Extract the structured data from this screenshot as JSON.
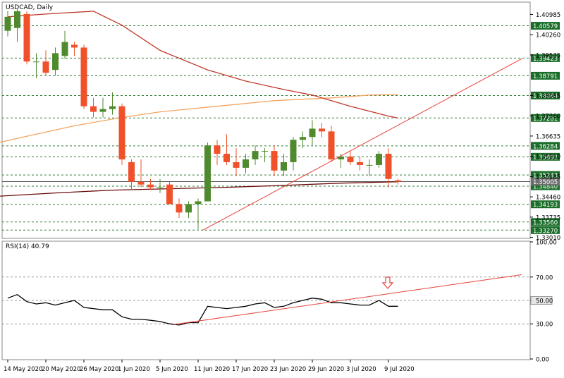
{
  "chart_data": {
    "type": "candlestick",
    "main": {
      "title": "USDCAD, Daily",
      "ylim": [
        1.33,
        1.414
      ],
      "price_ticks": [
        "1.40985",
        "1.40260",
        "1.39535",
        "1.38085",
        "1.37360",
        "1.36635",
        "1.35910",
        "1.35185",
        "1.34460",
        "1.33735",
        "1.33010"
      ],
      "levels": [
        {
          "value": 1.40579,
          "label": "1.40579"
        },
        {
          "value": 1.39423,
          "label": "1.39423"
        },
        {
          "value": 1.38791,
          "label": "1.38791"
        },
        {
          "value": 1.38084,
          "label": "1.38084"
        },
        {
          "value": 1.37281,
          "label": "1.37281"
        },
        {
          "value": 1.36284,
          "label": "1.36284"
        },
        {
          "value": 1.35892,
          "label": "1.35892"
        },
        {
          "value": 1.35243,
          "label": "1.35243"
        },
        {
          "value": 1.3484,
          "label": "1.34840"
        },
        {
          "value": 1.34193,
          "label": "1.34193"
        },
        {
          "value": 1.3356,
          "label": "1.33560"
        },
        {
          "value": 1.3327,
          "label": "1.33270"
        }
      ],
      "current_price": {
        "value": 1.35005,
        "label": "1.35005"
      },
      "candles": [
        {
          "o": 1.404,
          "h": 1.411,
          "l": 1.402,
          "c": 1.409
        },
        {
          "o": 1.405,
          "h": 1.412,
          "l": 1.4,
          "c": 1.411
        },
        {
          "o": 1.41,
          "h": 1.411,
          "l": 1.392,
          "c": 1.393
        },
        {
          "o": 1.393,
          "h": 1.396,
          "l": 1.387,
          "c": 1.393
        },
        {
          "o": 1.393,
          "h": 1.397,
          "l": 1.388,
          "c": 1.389
        },
        {
          "o": 1.39,
          "h": 1.398,
          "l": 1.388,
          "c": 1.396
        },
        {
          "o": 1.395,
          "h": 1.404,
          "l": 1.394,
          "c": 1.4
        },
        {
          "o": 1.399,
          "h": 1.4,
          "l": 1.395,
          "c": 1.398
        },
        {
          "o": 1.398,
          "h": 1.399,
          "l": 1.376,
          "c": 1.377
        },
        {
          "o": 1.377,
          "h": 1.38,
          "l": 1.373,
          "c": 1.375
        },
        {
          "o": 1.375,
          "h": 1.38,
          "l": 1.373,
          "c": 1.376
        },
        {
          "o": 1.376,
          "h": 1.382,
          "l": 1.374,
          "c": 1.377
        },
        {
          "o": 1.377,
          "h": 1.378,
          "l": 1.356,
          "c": 1.358
        },
        {
          "o": 1.357,
          "h": 1.358,
          "l": 1.347,
          "c": 1.35
        },
        {
          "o": 1.35,
          "h": 1.358,
          "l": 1.348,
          "c": 1.349
        },
        {
          "o": 1.349,
          "h": 1.351,
          "l": 1.347,
          "c": 1.348
        },
        {
          "o": 1.348,
          "h": 1.351,
          "l": 1.346,
          "c": 1.348
        },
        {
          "o": 1.349,
          "h": 1.35,
          "l": 1.342,
          "c": 1.342
        },
        {
          "o": 1.342,
          "h": 1.344,
          "l": 1.337,
          "c": 1.339
        },
        {
          "o": 1.339,
          "h": 1.343,
          "l": 1.337,
          "c": 1.342
        },
        {
          "o": 1.342,
          "h": 1.344,
          "l": 1.333,
          "c": 1.343
        },
        {
          "o": 1.343,
          "h": 1.364,
          "l": 1.343,
          "c": 1.363
        },
        {
          "o": 1.363,
          "h": 1.365,
          "l": 1.356,
          "c": 1.36
        },
        {
          "o": 1.36,
          "h": 1.367,
          "l": 1.356,
          "c": 1.357
        },
        {
          "o": 1.357,
          "h": 1.362,
          "l": 1.352,
          "c": 1.355
        },
        {
          "o": 1.355,
          "h": 1.36,
          "l": 1.353,
          "c": 1.358
        },
        {
          "o": 1.358,
          "h": 1.363,
          "l": 1.356,
          "c": 1.361
        },
        {
          "o": 1.361,
          "h": 1.362,
          "l": 1.357,
          "c": 1.361
        },
        {
          "o": 1.361,
          "h": 1.363,
          "l": 1.352,
          "c": 1.354
        },
        {
          "o": 1.354,
          "h": 1.36,
          "l": 1.352,
          "c": 1.357
        },
        {
          "o": 1.357,
          "h": 1.366,
          "l": 1.354,
          "c": 1.365
        },
        {
          "o": 1.365,
          "h": 1.368,
          "l": 1.362,
          "c": 1.366
        },
        {
          "o": 1.366,
          "h": 1.372,
          "l": 1.363,
          "c": 1.369
        },
        {
          "o": 1.369,
          "h": 1.371,
          "l": 1.366,
          "c": 1.368
        },
        {
          "o": 1.368,
          "h": 1.37,
          "l": 1.357,
          "c": 1.358
        },
        {
          "o": 1.358,
          "h": 1.36,
          "l": 1.355,
          "c": 1.359
        },
        {
          "o": 1.359,
          "h": 1.361,
          "l": 1.356,
          "c": 1.357
        },
        {
          "o": 1.357,
          "h": 1.359,
          "l": 1.354,
          "c": 1.356
        },
        {
          "o": 1.356,
          "h": 1.358,
          "l": 1.352,
          "c": 1.356
        },
        {
          "o": 1.356,
          "h": 1.361,
          "l": 1.355,
          "c": 1.36
        },
        {
          "o": 1.36,
          "h": 1.362,
          "l": 1.348,
          "c": 1.351
        },
        {
          "o": 1.3505,
          "h": 1.351,
          "l": 1.349,
          "c": 1.35
        }
      ],
      "ma_red": [
        [
          0,
          1.409
        ],
        [
          4,
          1.41
        ],
        [
          9,
          1.411
        ],
        [
          12,
          1.406
        ],
        [
          16,
          1.397
        ],
        [
          21,
          1.39
        ],
        [
          25,
          1.386
        ],
        [
          29,
          1.383
        ],
        [
          32,
          1.381
        ],
        [
          36,
          1.377
        ],
        [
          40,
          1.3735
        ],
        [
          41,
          1.3728
        ]
      ],
      "ma_orange": [
        [
          -1,
          1.364
        ],
        [
          3,
          1.367
        ],
        [
          7,
          1.37
        ],
        [
          12,
          1.373
        ],
        [
          16,
          1.375
        ],
        [
          22,
          1.377
        ],
        [
          28,
          1.379
        ],
        [
          34,
          1.38
        ],
        [
          38,
          1.381
        ],
        [
          41,
          1.3812
        ]
      ],
      "ma_darkred": [
        [
          -1,
          1.3448
        ],
        [
          5,
          1.346
        ],
        [
          11,
          1.347
        ],
        [
          17,
          1.3475
        ],
        [
          23,
          1.348
        ],
        [
          29,
          1.3487
        ],
        [
          35,
          1.3495
        ],
        [
          41,
          1.35
        ]
      ],
      "trendline": {
        "from": [
          20.5,
          1.3327
        ],
        "to": [
          54,
          1.394
        ]
      }
    },
    "rsi": {
      "title": "RSI(14) 40.79",
      "ylim": [
        0,
        100
      ],
      "ticks": [
        "100.00",
        "70.00",
        "50.00",
        "30.00",
        "0.00"
      ],
      "current": "50.00",
      "values": [
        52,
        55,
        49,
        47,
        48,
        46,
        48,
        50,
        44,
        43,
        42,
        42,
        36,
        34,
        34,
        33,
        32,
        30,
        29,
        31,
        31,
        45,
        44,
        43,
        44,
        45,
        47,
        48,
        44,
        45,
        48,
        50,
        52,
        51,
        48,
        48,
        47,
        46,
        46,
        50,
        45,
        45
      ],
      "trendline": {
        "from": [
          17.5,
          29.5
        ],
        "to": [
          54,
          72
        ]
      }
    },
    "x_labels": [
      {
        "i": 0,
        "label": "14 May 2020"
      },
      {
        "i": 4,
        "label": "20 May 2020"
      },
      {
        "i": 8,
        "label": "26 May 2020"
      },
      {
        "i": 12,
        "label": "1 Jun 2020"
      },
      {
        "i": 16,
        "label": "5 Jun 2020"
      },
      {
        "i": 20,
        "label": "11 Jun 2020"
      },
      {
        "i": 24,
        "label": "17 Jun 2020"
      },
      {
        "i": 28,
        "label": "23 Jun 2020"
      },
      {
        "i": 32,
        "label": "29 Jun 2020"
      },
      {
        "i": 36,
        "label": "3 Jul 2020"
      },
      {
        "i": 40,
        "label": "9 Jul 2020"
      }
    ],
    "colors": {
      "bull": "#4f8a2e",
      "bear": "#f0502a",
      "ma_red": "#c0392b",
      "ma_orange": "#f4a460",
      "ma_darkred": "#6b0a0a",
      "trendline": "#e8413a",
      "level_line": "#2e7d32",
      "level_label_bg": "#1b6e2a",
      "current_label_bg": "#6e6e6e",
      "rsi_line": "#000000",
      "arrow": "#e8413a"
    }
  }
}
